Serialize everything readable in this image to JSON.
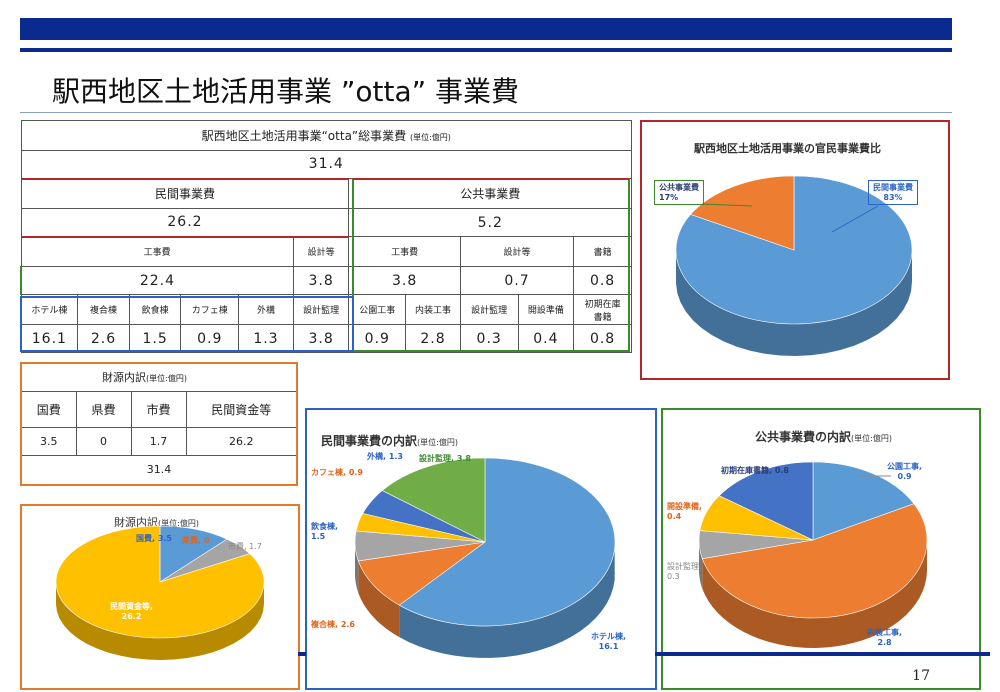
{
  "slide": {
    "title": "駅西地区土地活用事業 ”otta” 事業費",
    "page_number": "17"
  },
  "cost_table": {
    "total_title": "駅西地区土地活用事業“otta”総事業費",
    "unit": "(単位:億円)",
    "total": "31.4",
    "private_label": "民間事業費",
    "private_total": "26.2",
    "public_label": "公共事業費",
    "public_total": "5.2",
    "private_construction_label": "工事費",
    "private_construction": "22.4",
    "private_design_label": "設計等",
    "private_design": "3.8",
    "public_construction_label": "工事費",
    "public_construction": "3.8",
    "public_design_label": "設計等",
    "public_design": "0.7",
    "books_label": "書籍",
    "books": "0.8",
    "items": [
      {
        "label": "ホテル棟",
        "value": "16.1"
      },
      {
        "label": "複合棟",
        "value": "2.6"
      },
      {
        "label": "飲食棟",
        "value": "1.5"
      },
      {
        "label": "カフェ棟",
        "value": "0.9"
      },
      {
        "label": "外構",
        "value": "1.3"
      },
      {
        "label": "設計監理",
        "value": "3.8"
      },
      {
        "label": "公園工事",
        "value": "0.9"
      },
      {
        "label": "内装工事",
        "value": "2.8"
      },
      {
        "label": "設計監理",
        "value": "0.3"
      },
      {
        "label": "開設準備",
        "value": "0.4"
      },
      {
        "label": "初期在庫\n書籍",
        "value": "0.8"
      }
    ]
  },
  "funding_table": {
    "title": "財源内訳",
    "unit": "(単位:億円)",
    "headers": [
      "国費",
      "県費",
      "市費",
      "民間資金等"
    ],
    "values": [
      "3.5",
      "0",
      "1.7",
      "26.2"
    ],
    "total": "31.4"
  },
  "chart_data": [
    {
      "type": "pie",
      "title": "駅西地区土地活用事業の官民事業費比",
      "labels": [
        "民間事業費",
        "公共事業費"
      ],
      "values": [
        83,
        17
      ],
      "value_labels": [
        "83%",
        "17%"
      ],
      "colors": [
        "#5b9bd5",
        "#ed7d31"
      ]
    },
    {
      "type": "pie",
      "title": "財源内訳",
      "unit": "(単位:億円)",
      "labels": [
        "国費",
        "県費",
        "市費",
        "民間資金等"
      ],
      "values": [
        3.5,
        0,
        1.7,
        26.2
      ],
      "colors": [
        "#5b9bd5",
        "#ed7d31",
        "#a5a5a5",
        "#ffc000"
      ]
    },
    {
      "type": "pie",
      "title": "民間事業費の内訳",
      "unit": "(単位:億円)",
      "labels": [
        "ホテル棟",
        "複合棟",
        "飲食棟",
        "カフェ棟",
        "外構",
        "設計監理"
      ],
      "values": [
        16.1,
        2.6,
        1.5,
        0.9,
        1.3,
        3.8
      ],
      "colors": [
        "#5b9bd5",
        "#ed7d31",
        "#a5a5a5",
        "#ffc000",
        "#4472c4",
        "#70ad47"
      ]
    },
    {
      "type": "pie",
      "title": "公共事業費の内訳",
      "unit": "(単位:億円)",
      "labels": [
        "公園工事",
        "内装工事",
        "設計監理",
        "開設準備",
        "初期在庫書籍"
      ],
      "values": [
        0.9,
        2.8,
        0.3,
        0.4,
        0.8
      ],
      "colors": [
        "#5b9bd5",
        "#ed7d31",
        "#a5a5a5",
        "#ffc000",
        "#4472c4"
      ]
    }
  ]
}
